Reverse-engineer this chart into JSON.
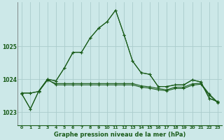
{
  "background_color": "#cce8e8",
  "grid_color": "#aacccc",
  "line_color": "#1a5c1a",
  "title": "Graphe pression niveau de la mer (hPa)",
  "xlim": [
    -0.5,
    23.5
  ],
  "ylim": [
    1022.6,
    1026.35
  ],
  "yticks": [
    1023,
    1024,
    1025
  ],
  "xticks": [
    0,
    1,
    2,
    3,
    4,
    5,
    6,
    7,
    8,
    9,
    10,
    11,
    12,
    13,
    14,
    15,
    16,
    17,
    18,
    19,
    20,
    21,
    22,
    23
  ],
  "s1": [
    1023.55,
    1023.1,
    1023.65,
    1024.0,
    1023.95,
    1024.35,
    1024.82,
    1024.82,
    1025.25,
    1025.55,
    1025.75,
    1026.1,
    1025.35,
    1024.55,
    1024.2,
    1024.15,
    1023.78,
    1023.78,
    1023.83,
    1023.83,
    1023.98,
    1023.92,
    1023.42,
    1023.32
  ],
  "s2": [
    1023.58,
    1023.58,
    1023.63,
    1024.0,
    1023.83,
    1023.83,
    1023.83,
    1023.83,
    1023.83,
    1023.83,
    1023.83,
    1023.83,
    1023.83,
    1023.83,
    1023.76,
    1023.73,
    1023.68,
    1023.65,
    1023.72,
    1023.72,
    1023.82,
    1023.85,
    1023.52,
    1023.28
  ],
  "s3": [
    1023.58,
    1023.58,
    1023.63,
    1023.97,
    1023.87,
    1023.87,
    1023.87,
    1023.87,
    1023.87,
    1023.87,
    1023.87,
    1023.87,
    1023.87,
    1023.87,
    1023.8,
    1023.77,
    1023.72,
    1023.68,
    1023.76,
    1023.76,
    1023.86,
    1023.88,
    1023.55,
    1023.3
  ],
  "s4": [
    1023.55,
    1023.1,
    1023.65,
    1024.0,
    1023.95,
    1024.35,
    1024.82,
    1024.82,
    1025.25,
    1025.55,
    1025.75,
    1026.1,
    1025.35,
    1024.55,
    1024.2,
    1024.15,
    1023.78,
    1023.78,
    1023.83,
    1023.83,
    1023.98,
    1023.92,
    1023.42,
    1023.32
  ]
}
